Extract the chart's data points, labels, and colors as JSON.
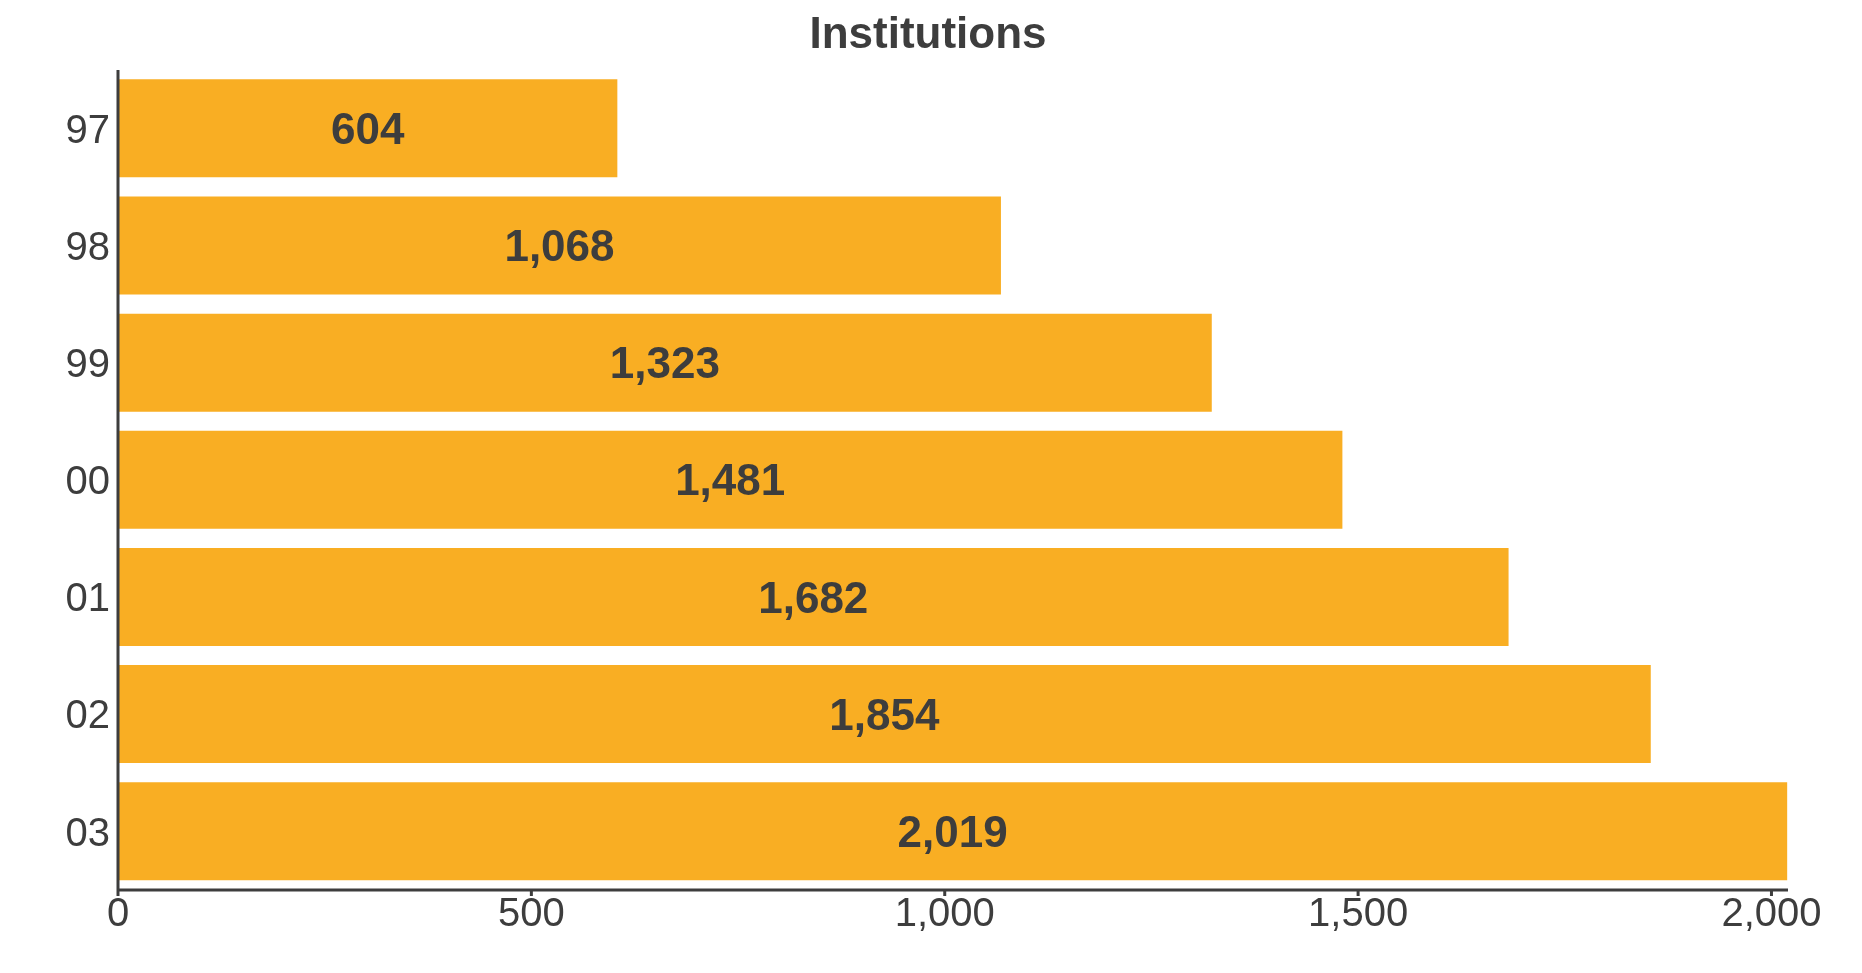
{
  "chart_data": {
    "type": "bar",
    "orientation": "horizontal",
    "title": "Institutions",
    "categories": [
      "97",
      "98",
      "99",
      "00",
      "01",
      "02",
      "03"
    ],
    "values": [
      604,
      1068,
      1323,
      1481,
      1682,
      1854,
      2019
    ],
    "color": "#f9ae23",
    "value_labels": [
      "604",
      "1,068",
      "1,323",
      "1,481",
      "1,682",
      "1,854",
      "2,019"
    ],
    "grid": false,
    "legend": false,
    "xlim": [
      0,
      2020
    ],
    "xticks": [
      0,
      500,
      {
        "value": 1000,
        "label": "1,000"
      },
      {
        "value": 1500,
        "label": "1,500"
      },
      {
        "value": 2000,
        "label": "2,000"
      }
    ]
  }
}
